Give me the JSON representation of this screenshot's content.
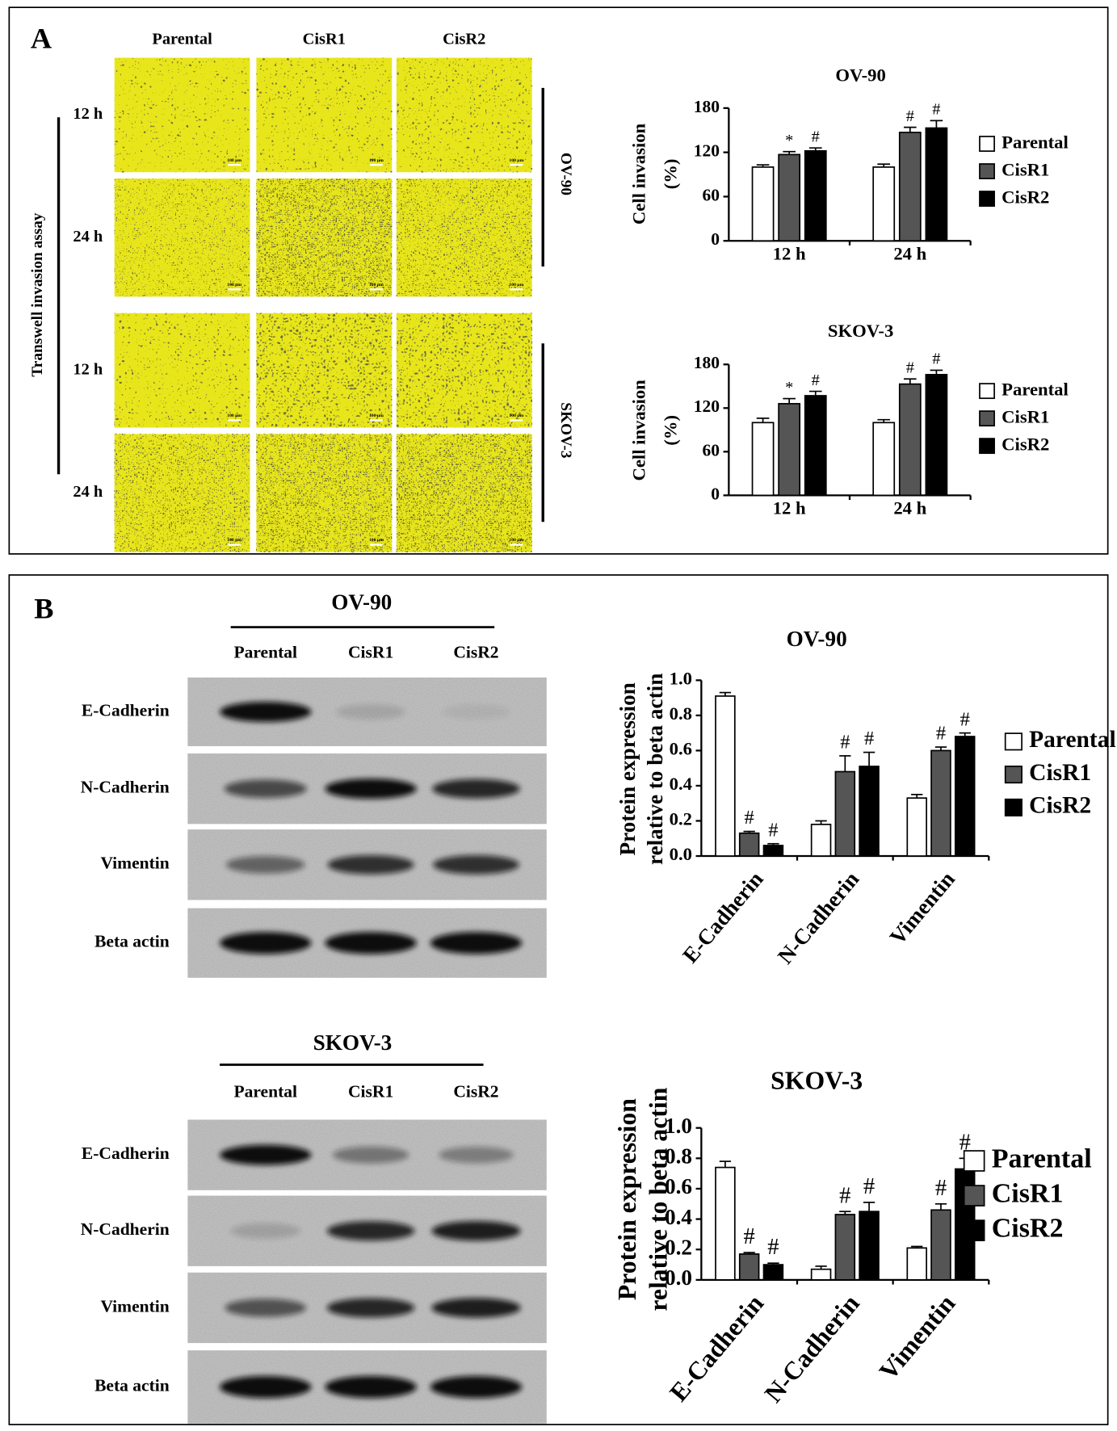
{
  "panel_a": {
    "label": "A",
    "columns": [
      "Parental",
      "CisR1",
      "CisR2"
    ],
    "rows": [
      "12 h",
      "24 h",
      "12 h",
      "24 h"
    ],
    "assay": "Transwell invasion assay",
    "groups": [
      "OV-90",
      "SKOV-3"
    ],
    "scale_bar": "100 µm"
  },
  "panel_b": {
    "label": "B",
    "blots": [
      {
        "title": "OV-90",
        "lanes": [
          "Parental",
          "CisR1",
          "CisR2"
        ],
        "proteins": [
          "E-Cadherin",
          "N-Cadherin",
          "Vimentin",
          "Beta actin"
        ]
      },
      {
        "title": "SKOV-3",
        "lanes": [
          "Parental",
          "CisR1",
          "CisR2"
        ],
        "proteins": [
          "E-Cadherin",
          "N-Cadherin",
          "Vimentin",
          "Beta actin"
        ]
      }
    ]
  },
  "chart_data": [
    {
      "type": "bar",
      "title": "OV-90",
      "ylabel": [
        "Cell invasion",
        "(%)"
      ],
      "categories": [
        "12 h",
        "24 h"
      ],
      "ylim": [
        0,
        180
      ],
      "yticks": [
        0,
        60,
        120,
        180
      ],
      "series": [
        {
          "name": "Parental",
          "color": "#ffffff",
          "values": [
            100,
            100
          ],
          "errors": [
            3,
            4
          ]
        },
        {
          "name": "CisR1",
          "color": "#555555",
          "values": [
            117,
            147
          ],
          "errors": [
            4,
            7
          ],
          "annotations": [
            "*",
            "#"
          ]
        },
        {
          "name": "CisR2",
          "color": "#000000",
          "values": [
            122,
            153
          ],
          "errors": [
            4,
            10
          ],
          "annotations": [
            "#",
            "#"
          ]
        }
      ]
    },
    {
      "type": "bar",
      "title": "SKOV-3",
      "ylabel": [
        "Cell invasion",
        "(%)"
      ],
      "categories": [
        "12 h",
        "24 h"
      ],
      "ylim": [
        0,
        180
      ],
      "yticks": [
        0,
        60,
        120,
        180
      ],
      "series": [
        {
          "name": "Parental",
          "color": "#ffffff",
          "values": [
            100,
            100
          ],
          "errors": [
            6,
            4
          ]
        },
        {
          "name": "CisR1",
          "color": "#555555",
          "values": [
            126,
            153
          ],
          "errors": [
            7,
            7
          ],
          "annotations": [
            "*",
            "#"
          ]
        },
        {
          "name": "CisR2",
          "color": "#000000",
          "values": [
            137,
            166
          ],
          "errors": [
            6,
            6
          ],
          "annotations": [
            "#",
            "#"
          ]
        }
      ]
    },
    {
      "type": "bar",
      "title": "OV-90",
      "ylabel": [
        "Protein expression",
        "relative to beta actin"
      ],
      "categories": [
        "E-Cadherin",
        "N-Cadherin",
        "Vimentin"
      ],
      "ylim": [
        0,
        1
      ],
      "yticks": [
        {
          "value": 0,
          "label": "0.0"
        },
        0.2,
        0.4,
        0.6,
        0.8,
        {
          "value": 1,
          "label": "1.0"
        }
      ],
      "series": [
        {
          "name": "Parental",
          "color": "#ffffff",
          "values": [
            0.91,
            0.18,
            0.33
          ],
          "errors": [
            0.02,
            0.02,
            0.02
          ]
        },
        {
          "name": "CisR1",
          "color": "#555555",
          "values": [
            0.13,
            0.48,
            0.6
          ],
          "errors": [
            0.01,
            0.09,
            0.02
          ],
          "annotations": [
            "#",
            "#",
            "#"
          ]
        },
        {
          "name": "CisR2",
          "color": "#000000",
          "values": [
            0.06,
            0.51,
            0.68
          ],
          "errors": [
            0.01,
            0.08,
            0.02
          ],
          "annotations": [
            "#",
            "#",
            "#"
          ]
        }
      ]
    },
    {
      "type": "bar",
      "title": "SKOV-3",
      "ylabel": [
        "Protein expression",
        "relative to beta actin"
      ],
      "categories": [
        "E-Cadherin",
        "N-Cadherin",
        "Vimentin"
      ],
      "ylim": [
        0,
        1
      ],
      "yticks": [
        {
          "value": 0,
          "label": "0.0"
        },
        0.2,
        0.4,
        0.6,
        0.8,
        {
          "value": 1,
          "label": "1.0"
        }
      ],
      "series": [
        {
          "name": "Parental",
          "color": "#ffffff",
          "values": [
            0.74,
            0.07,
            0.21
          ],
          "errors": [
            0.04,
            0.02,
            0.01
          ]
        },
        {
          "name": "CisR1",
          "color": "#555555",
          "values": [
            0.17,
            0.43,
            0.46
          ],
          "errors": [
            0.01,
            0.02,
            0.04
          ],
          "annotations": [
            "#",
            "#",
            "#"
          ]
        },
        {
          "name": "CisR2",
          "color": "#000000",
          "values": [
            0.1,
            0.45,
            0.73
          ],
          "errors": [
            0.01,
            0.06,
            0.07
          ],
          "annotations": [
            "#",
            "#",
            "#"
          ]
        }
      ]
    }
  ]
}
